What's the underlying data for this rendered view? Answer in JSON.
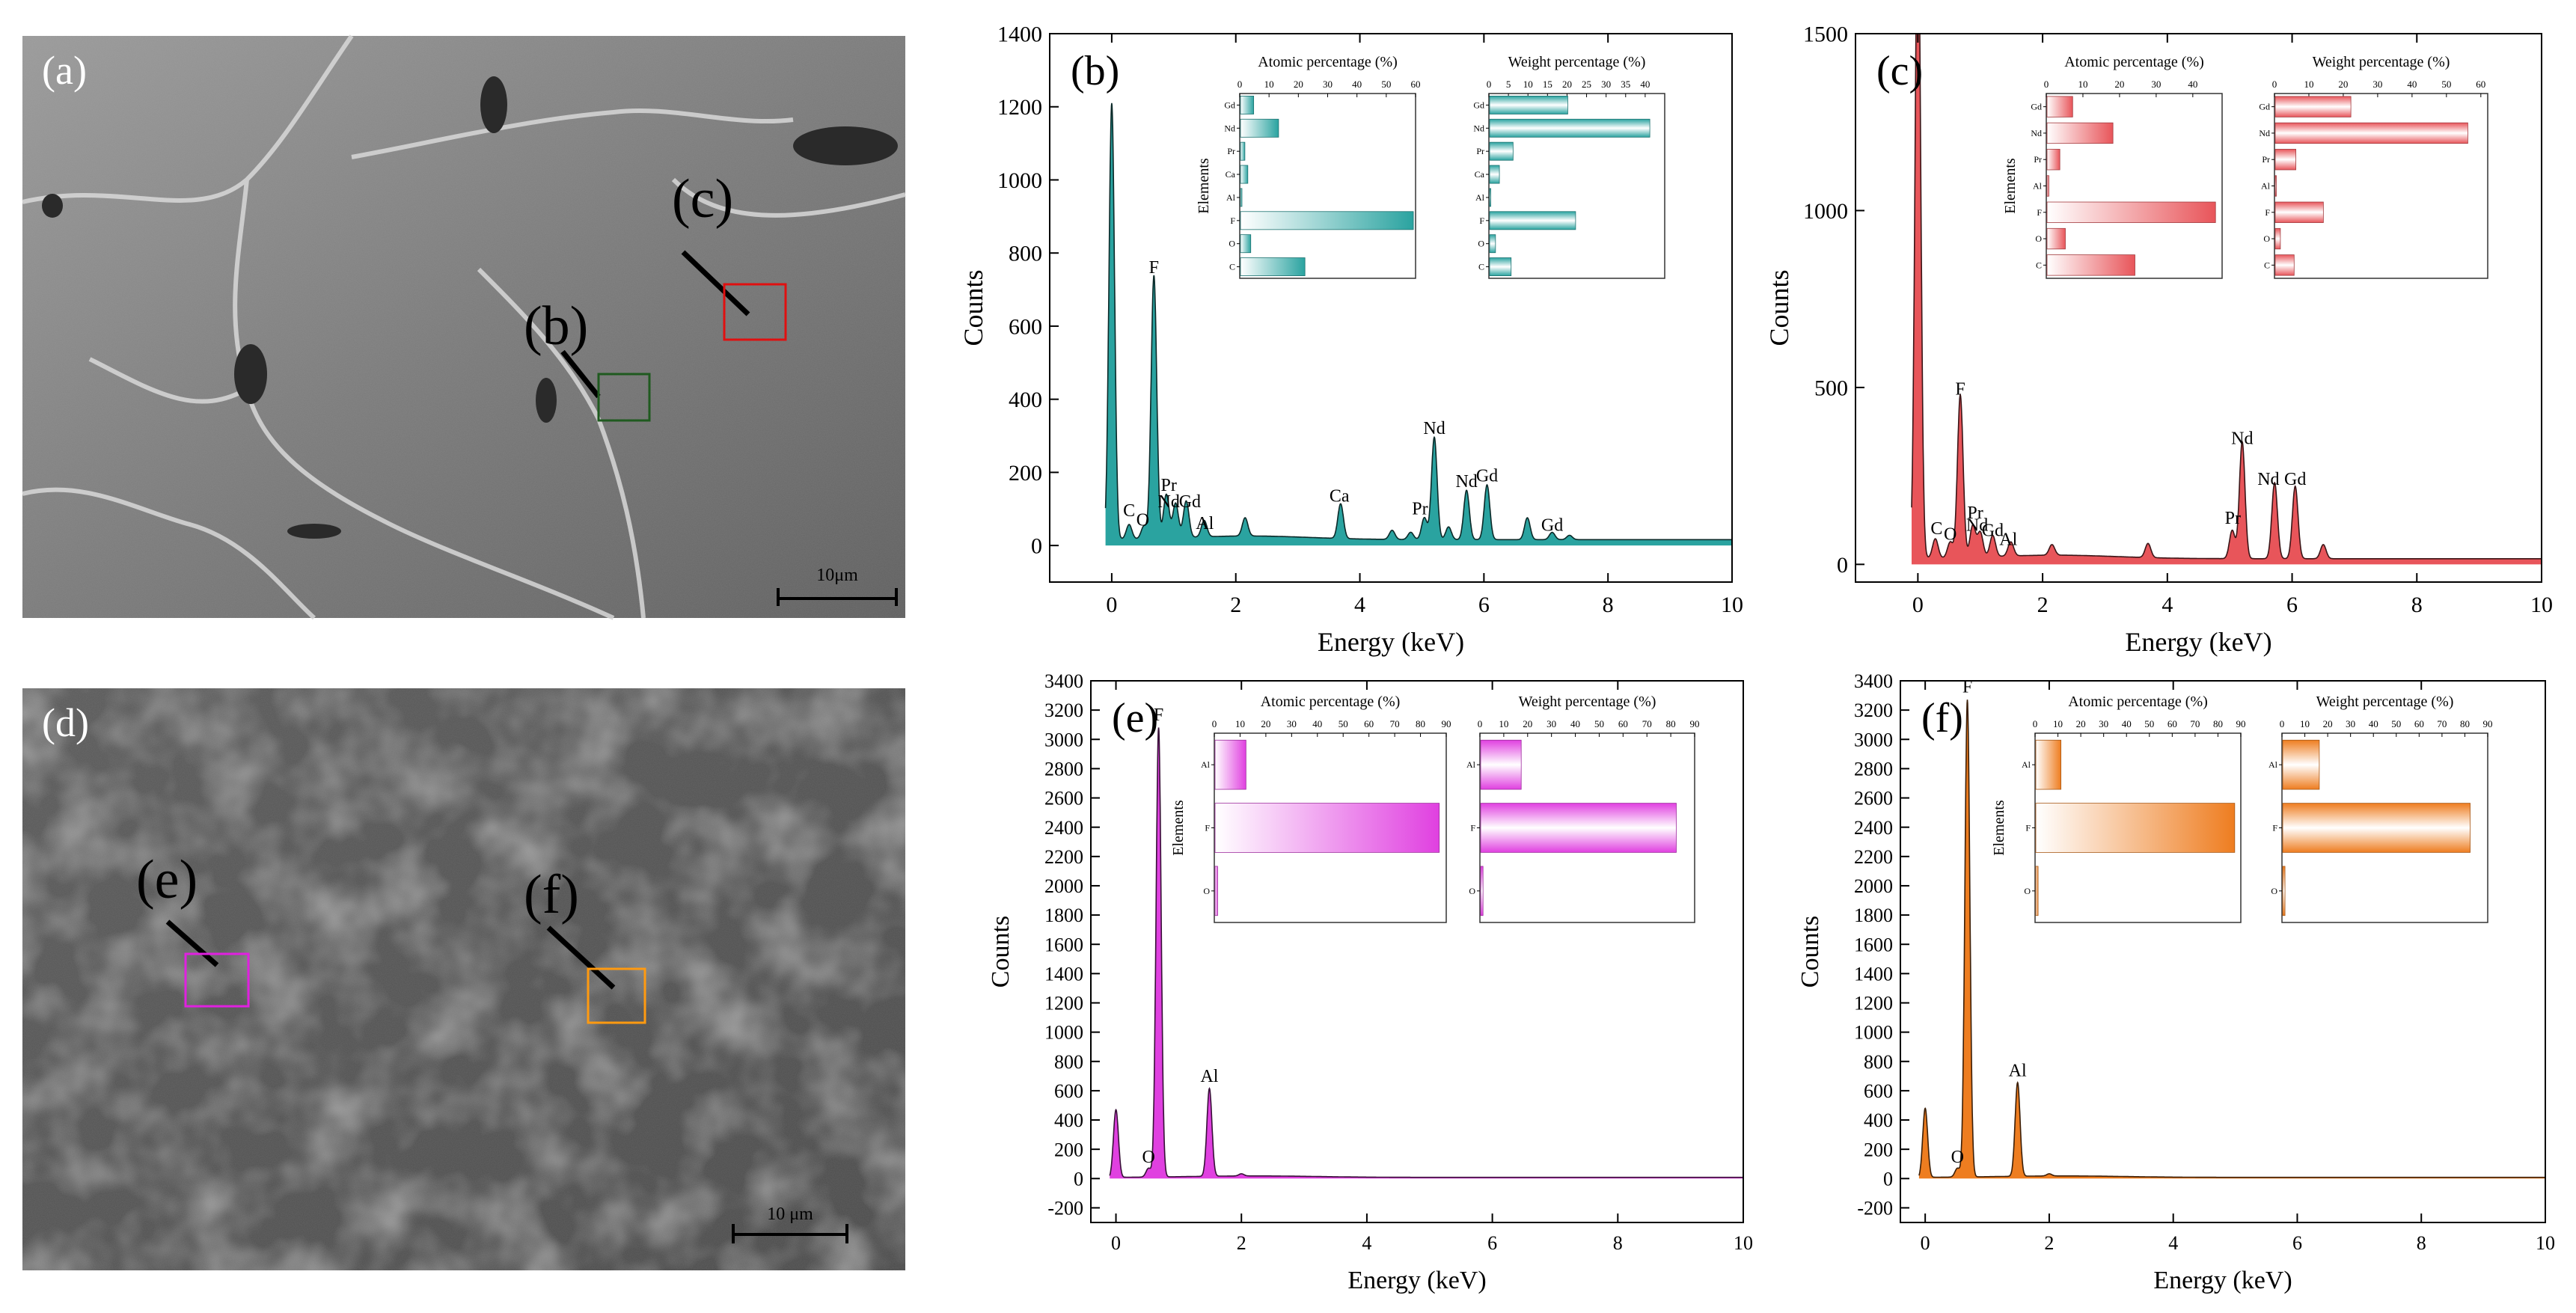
{
  "figure": {
    "sem_panels": [
      {
        "letter": "(a)",
        "scale_bar": "10μm",
        "markers": [
          {
            "label": "(b)",
            "color": "#1f5a1f"
          },
          {
            "label": "(c)",
            "color": "#e01010"
          }
        ]
      },
      {
        "letter": "(d)",
        "scale_bar": "10 μm",
        "markers": [
          {
            "label": "(e)",
            "color": "#e020e0"
          },
          {
            "label": "(f)",
            "color": "#ff9a10"
          }
        ]
      }
    ]
  },
  "chart_data": [
    {
      "panel": "(b)",
      "type": "area",
      "color": "#2aa3a0",
      "xlabel": "Energy (keV)",
      "ylabel": "Counts",
      "xlim": [
        -1,
        10
      ],
      "ylim": [
        -100,
        1400
      ],
      "xticks": [
        0,
        2,
        4,
        6,
        8,
        10
      ],
      "yticks": [
        0,
        200,
        400,
        600,
        800,
        1000,
        1200,
        1400
      ],
      "peaks": [
        [
          0.0,
          1210
        ],
        [
          0.28,
          40
        ],
        [
          0.52,
          35
        ],
        [
          0.68,
          720
        ],
        [
          0.88,
          120
        ],
        [
          1.03,
          95
        ],
        [
          1.2,
          100
        ],
        [
          1.49,
          45
        ],
        [
          2.15,
          50
        ],
        [
          3.69,
          95
        ],
        [
          4.52,
          25
        ],
        [
          4.82,
          20
        ],
        [
          5.04,
          60
        ],
        [
          5.2,
          280
        ],
        [
          5.43,
          35
        ],
        [
          5.72,
          135
        ],
        [
          6.05,
          150
        ],
        [
          6.7,
          60
        ],
        [
          7.1,
          20
        ],
        [
          7.38,
          12
        ]
      ],
      "labels": [
        {
          "text": "F",
          "x": 0.68,
          "y": 745
        },
        {
          "text": "C",
          "x": 0.28,
          "y": 80
        },
        {
          "text": "O",
          "x": 0.5,
          "y": 55
        },
        {
          "text": "Pr",
          "x": 0.92,
          "y": 150
        },
        {
          "text": "Nd",
          "x": 0.92,
          "y": 105
        },
        {
          "text": "Gd",
          "x": 1.26,
          "y": 105
        },
        {
          "text": "Al",
          "x": 1.5,
          "y": 45
        },
        {
          "text": "Ca",
          "x": 3.67,
          "y": 120
        },
        {
          "text": "Pr",
          "x": 4.97,
          "y": 85
        },
        {
          "text": "Nd",
          "x": 5.2,
          "y": 305
        },
        {
          "text": "Nd",
          "x": 5.72,
          "y": 160
        },
        {
          "text": "Gd",
          "x": 6.05,
          "y": 175
        },
        {
          "text": "Gd",
          "x": 7.1,
          "y": 40
        }
      ],
      "insets": [
        {
          "title": "Atomic percentage (%)",
          "ylabel": "Elements",
          "xlim": [
            0,
            60
          ],
          "xticks": [
            0,
            10,
            20,
            30,
            40,
            50,
            60
          ],
          "categories": [
            "Gd",
            "Nd",
            "Pr",
            "Ca",
            "Al",
            "F",
            "O",
            "C"
          ],
          "values": [
            4.5,
            13.0,
            1.5,
            2.5,
            0.5,
            59.0,
            3.5,
            22.0
          ],
          "style": "gradient"
        },
        {
          "title": "Weight percentage (%)",
          "ylabel": "",
          "xlim": [
            0,
            45
          ],
          "xticks": [
            0,
            5,
            10,
            15,
            20,
            25,
            30,
            35,
            40
          ],
          "categories": [
            "Gd",
            "Nd",
            "Pr",
            "Ca",
            "Al",
            "F",
            "O",
            "C"
          ],
          "values": [
            20.0,
            41.0,
            6.0,
            2.5,
            0.2,
            22.0,
            1.5,
            5.5
          ],
          "style": "stripes"
        }
      ]
    },
    {
      "panel": "(c)",
      "type": "area",
      "color": "#e8555a",
      "xlabel": "Energy (keV)",
      "ylabel": "Counts",
      "xlim": [
        -1,
        10
      ],
      "ylim": [
        -50,
        1500
      ],
      "xticks": [
        0,
        2,
        4,
        6,
        8,
        10
      ],
      "yticks": [
        0,
        500,
        1000,
        1500
      ],
      "peaks": [
        [
          0.0,
          1900
        ],
        [
          0.28,
          55
        ],
        [
          0.52,
          45
        ],
        [
          0.68,
          460
        ],
        [
          0.88,
          90
        ],
        [
          1.0,
          70
        ],
        [
          1.2,
          60
        ],
        [
          1.49,
          40
        ],
        [
          2.15,
          30
        ],
        [
          3.69,
          40
        ],
        [
          5.04,
          80
        ],
        [
          5.2,
          330
        ],
        [
          5.72,
          215
        ],
        [
          6.05,
          205
        ],
        [
          6.5,
          40
        ]
      ],
      "labels": [
        {
          "text": "F",
          "x": 0.68,
          "y": 480
        },
        {
          "text": "C",
          "x": 0.3,
          "y": 85
        },
        {
          "text": "O",
          "x": 0.52,
          "y": 70
        },
        {
          "text": "Pr",
          "x": 0.92,
          "y": 130
        },
        {
          "text": "Nd",
          "x": 0.95,
          "y": 95
        },
        {
          "text": "Gd",
          "x": 1.2,
          "y": 80
        },
        {
          "text": "Al",
          "x": 1.45,
          "y": 55
        },
        {
          "text": "Pr",
          "x": 5.05,
          "y": 115
        },
        {
          "text": "Nd",
          "x": 5.2,
          "y": 340
        },
        {
          "text": "Nd",
          "x": 5.62,
          "y": 225
        },
        {
          "text": "Gd",
          "x": 6.05,
          "y": 225
        }
      ],
      "insets": [
        {
          "title": "Atomic percentage (%)",
          "ylabel": "Elements",
          "xlim": [
            0,
            48
          ],
          "xticks": [
            0,
            10,
            20,
            30,
            40
          ],
          "categories": [
            "Gd",
            "Nd",
            "Pr",
            "Al",
            "F",
            "O",
            "C"
          ],
          "values": [
            7.0,
            18.0,
            3.5,
            0.5,
            46.0,
            5.0,
            24.0
          ],
          "style": "gradient"
        },
        {
          "title": "Weight percentage (%)",
          "ylabel": "",
          "xlim": [
            0,
            62
          ],
          "xticks": [
            0,
            10,
            20,
            30,
            40,
            50,
            60
          ],
          "categories": [
            "Gd",
            "Nd",
            "Pr",
            "Al",
            "F",
            "O",
            "C"
          ],
          "values": [
            22.0,
            56.0,
            6.0,
            0.3,
            14.0,
            1.5,
            5.5
          ],
          "style": "stripes"
        }
      ]
    },
    {
      "panel": "(e)",
      "type": "area",
      "color": "#e040e0",
      "xlabel": "Energy (keV)",
      "ylabel": "Counts",
      "xlim": [
        -0.4,
        10
      ],
      "ylim": [
        -300,
        3400
      ],
      "xticks": [
        0,
        2,
        4,
        6,
        8,
        10
      ],
      "yticks": [
        -200,
        0,
        200,
        400,
        600,
        800,
        1000,
        1200,
        1400,
        1600,
        1800,
        2000,
        2200,
        2400,
        2600,
        2800,
        3000,
        3200,
        3400
      ],
      "peaks": [
        [
          0.0,
          470
        ],
        [
          0.52,
          60
        ],
        [
          0.68,
          3070
        ],
        [
          1.49,
          600
        ],
        [
          2.0,
          15
        ]
      ],
      "labels": [
        {
          "text": "F",
          "x": 0.68,
          "y": 3130
        },
        {
          "text": "O",
          "x": 0.52,
          "y": 110
        },
        {
          "text": "Al",
          "x": 1.49,
          "y": 660
        }
      ],
      "insets": [
        {
          "title": "Atomic percentage (%)",
          "ylabel": "Elements",
          "xlim": [
            0,
            90
          ],
          "xticks": [
            0,
            10,
            20,
            30,
            40,
            50,
            60,
            70,
            80,
            90
          ],
          "categories": [
            "Al",
            "F",
            "O"
          ],
          "values": [
            12.0,
            87.0,
            1.0
          ],
          "style": "gradient"
        },
        {
          "title": "Weight percentage (%)",
          "ylabel": "",
          "xlim": [
            0,
            90
          ],
          "xticks": [
            0,
            10,
            20,
            30,
            40,
            50,
            60,
            70,
            80,
            90
          ],
          "categories": [
            "Al",
            "F",
            "O"
          ],
          "values": [
            17.0,
            82.0,
            1.0
          ],
          "style": "stripes"
        }
      ]
    },
    {
      "panel": "(f)",
      "type": "area",
      "color": "#ee7d20",
      "xlabel": "Energy (keV)",
      "ylabel": "Counts",
      "xlim": [
        -0.4,
        10
      ],
      "ylim": [
        -300,
        3400
      ],
      "xticks": [
        0,
        2,
        4,
        6,
        8,
        10
      ],
      "yticks": [
        -200,
        0,
        200,
        400,
        600,
        800,
        1000,
        1200,
        1400,
        1600,
        1800,
        2000,
        2200,
        2400,
        2600,
        2800,
        3000,
        3200,
        3400
      ],
      "peaks": [
        [
          0.0,
          480
        ],
        [
          0.52,
          60
        ],
        [
          0.68,
          3260
        ],
        [
          1.49,
          640
        ],
        [
          2.0,
          15
        ]
      ],
      "labels": [
        {
          "text": "F",
          "x": 0.68,
          "y": 3320
        },
        {
          "text": "O",
          "x": 0.52,
          "y": 110
        },
        {
          "text": "Al",
          "x": 1.49,
          "y": 700
        }
      ],
      "insets": [
        {
          "title": "Atomic percentage (%)",
          "ylabel": "Elements",
          "xlim": [
            0,
            90
          ],
          "xticks": [
            0,
            10,
            20,
            30,
            40,
            50,
            60,
            70,
            80,
            90
          ],
          "categories": [
            "Al",
            "F",
            "O"
          ],
          "values": [
            11.0,
            87.0,
            1.0
          ],
          "style": "gradient"
        },
        {
          "title": "Weight percentage (%)",
          "ylabel": "",
          "xlim": [
            0,
            90
          ],
          "xticks": [
            0,
            10,
            20,
            30,
            40,
            50,
            60,
            70,
            80,
            90
          ],
          "categories": [
            "Al",
            "F",
            "O"
          ],
          "values": [
            16.0,
            82.0,
            1.0
          ],
          "style": "stripes"
        }
      ]
    }
  ]
}
